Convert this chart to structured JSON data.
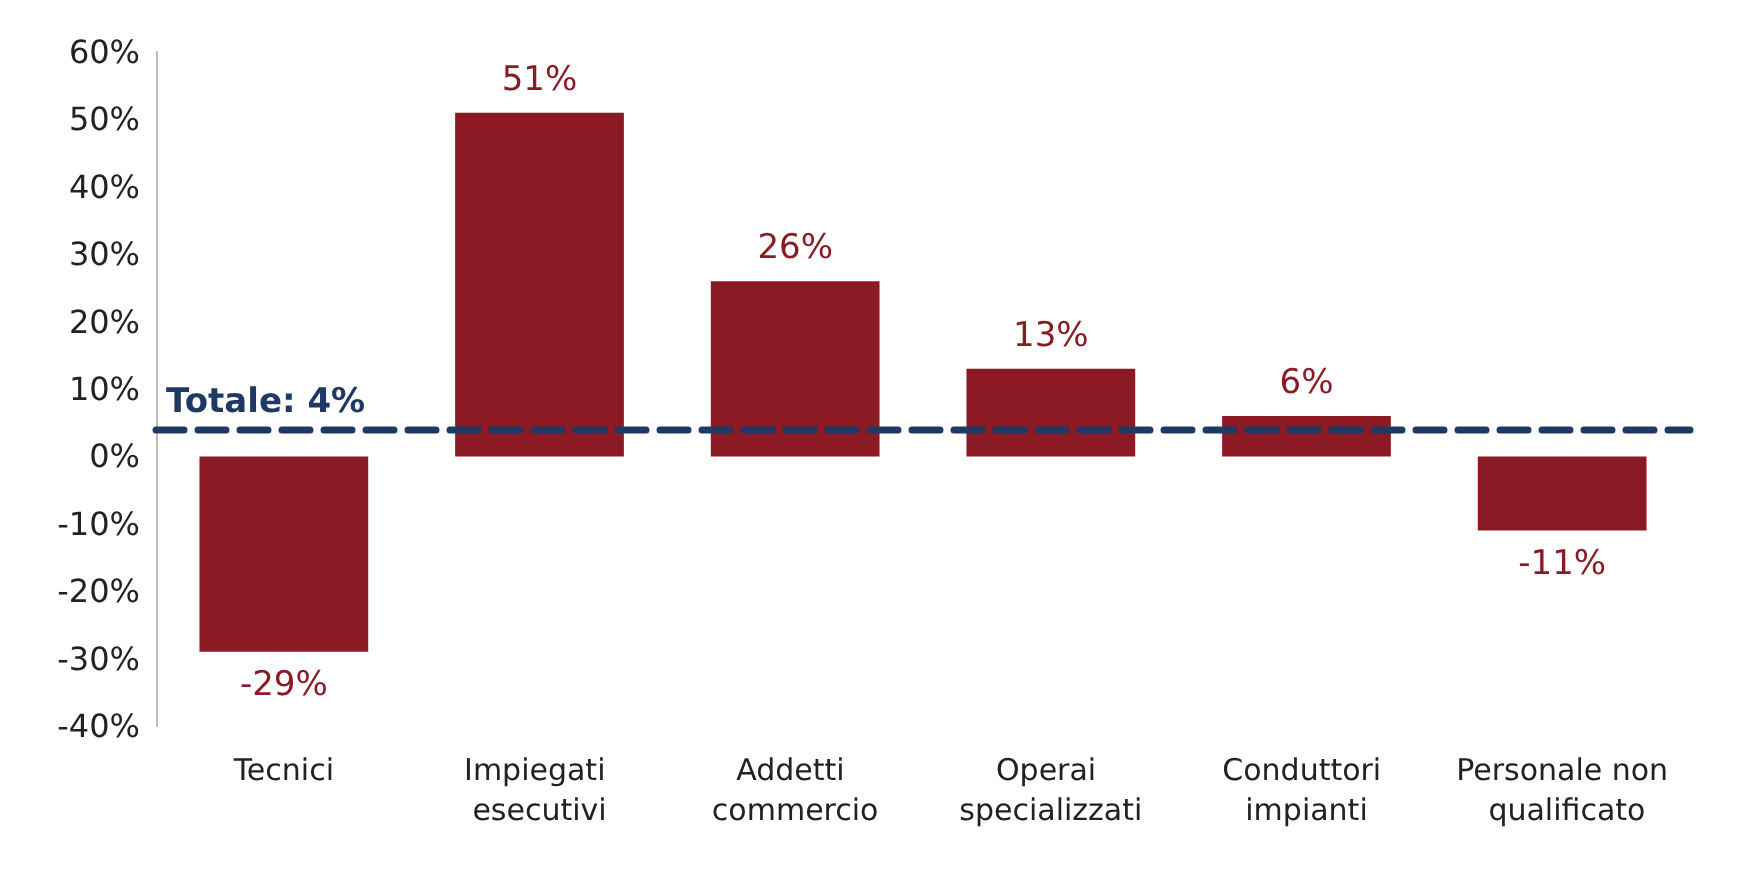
{
  "chart_data": {
    "type": "bar",
    "categories": [
      "Tecnici",
      "Impiegati esecutivi",
      "Addetti commercio",
      "Operai specializzati",
      "Conduttori impianti",
      "Personale non qualificato"
    ],
    "values": [
      -29,
      51,
      26,
      13,
      6,
      -11
    ],
    "value_labels": [
      "-29%",
      "51%",
      "26%",
      "13%",
      "6%",
      "-11%"
    ],
    "color": "#8b1a24",
    "ylim": [
      -40,
      60
    ],
    "yticks": [
      {
        "value": -40,
        "label": "-40%"
      },
      {
        "value": -30,
        "label": "-30%"
      },
      {
        "value": -20,
        "label": "-20%"
      },
      {
        "value": -10,
        "label": "-10%"
      },
      {
        "value": 0,
        "label": "0%"
      },
      {
        "value": 10,
        "label": "10%"
      },
      {
        "value": 20,
        "label": "20%"
      },
      {
        "value": 30,
        "label": "30%"
      },
      {
        "value": 40,
        "label": "40%"
      },
      {
        "value": 50,
        "label": "50%"
      },
      {
        "value": 60,
        "label": "60%"
      }
    ],
    "ref_lines": [
      {
        "axis": "y",
        "value": 4,
        "label": "Totale: 4%",
        "color": "#1f3864",
        "line_style": "dashed"
      }
    ],
    "grid": false
  }
}
